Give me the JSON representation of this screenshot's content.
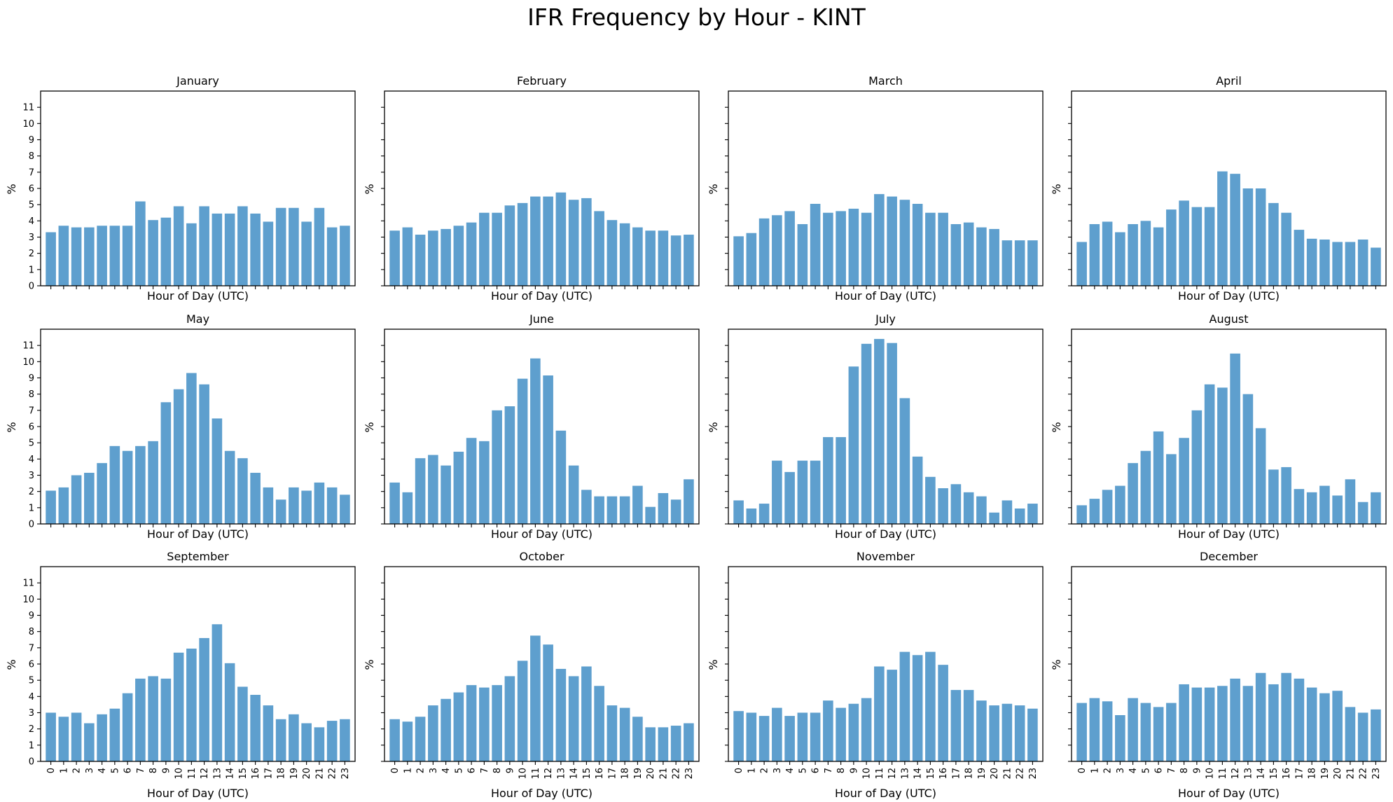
{
  "figure": {
    "title": "IFR Frequency by Hour - KINT"
  },
  "style": {
    "bar_color": "#5e9fce"
  },
  "chart_data": [
    {
      "type": "bar",
      "title": "January",
      "xlabel": "Hour of Day (UTC)",
      "ylabel": "%",
      "ylim": [
        0,
        12
      ],
      "categories": [
        "0",
        "1",
        "2",
        "3",
        "4",
        "5",
        "6",
        "7",
        "8",
        "9",
        "10",
        "11",
        "12",
        "13",
        "14",
        "15",
        "16",
        "17",
        "18",
        "19",
        "20",
        "21",
        "22",
        "23"
      ],
      "values": [
        3.3,
        3.7,
        3.6,
        3.6,
        3.7,
        3.7,
        3.7,
        5.2,
        4.05,
        4.2,
        4.9,
        3.85,
        4.9,
        4.45,
        4.45,
        4.9,
        4.45,
        3.95,
        4.8,
        4.8,
        3.95,
        4.8,
        3.6,
        3.7
      ]
    },
    {
      "type": "bar",
      "title": "February",
      "xlabel": "Hour of Day (UTC)",
      "ylabel": "%",
      "ylim": [
        0,
        12
      ],
      "categories": [
        "0",
        "1",
        "2",
        "3",
        "4",
        "5",
        "6",
        "7",
        "8",
        "9",
        "10",
        "11",
        "12",
        "13",
        "14",
        "15",
        "16",
        "17",
        "18",
        "19",
        "20",
        "21",
        "22",
        "23"
      ],
      "values": [
        3.4,
        3.6,
        3.15,
        3.4,
        3.5,
        3.7,
        3.9,
        4.5,
        4.5,
        4.95,
        5.1,
        5.5,
        5.5,
        5.75,
        5.3,
        5.4,
        4.6,
        4.05,
        3.85,
        3.6,
        3.4,
        3.4,
        3.1,
        3.15
      ]
    },
    {
      "type": "bar",
      "title": "March",
      "xlabel": "Hour of Day (UTC)",
      "ylabel": "%",
      "ylim": [
        0,
        12
      ],
      "categories": [
        "0",
        "1",
        "2",
        "3",
        "4",
        "5",
        "6",
        "7",
        "8",
        "9",
        "10",
        "11",
        "12",
        "13",
        "14",
        "15",
        "16",
        "17",
        "18",
        "19",
        "20",
        "21",
        "22",
        "23"
      ],
      "values": [
        3.05,
        3.25,
        4.15,
        4.35,
        4.6,
        3.8,
        5.05,
        4.5,
        4.6,
        4.75,
        4.5,
        5.65,
        5.5,
        5.3,
        5.05,
        4.5,
        4.5,
        3.8,
        3.9,
        3.6,
        3.5,
        2.8,
        2.8,
        2.8
      ]
    },
    {
      "type": "bar",
      "title": "April",
      "xlabel": "Hour of Day (UTC)",
      "ylabel": "%",
      "ylim": [
        0,
        12
      ],
      "categories": [
        "0",
        "1",
        "2",
        "3",
        "4",
        "5",
        "6",
        "7",
        "8",
        "9",
        "10",
        "11",
        "12",
        "13",
        "14",
        "15",
        "16",
        "17",
        "18",
        "19",
        "20",
        "21",
        "22",
        "23"
      ],
      "values": [
        2.7,
        3.8,
        3.95,
        3.3,
        3.8,
        4.0,
        3.6,
        4.7,
        5.25,
        4.85,
        4.85,
        7.05,
        6.9,
        6.0,
        6.0,
        5.1,
        4.5,
        3.45,
        2.9,
        2.85,
        2.7,
        2.7,
        2.85,
        2.35
      ]
    },
    {
      "type": "bar",
      "title": "May",
      "xlabel": "Hour of Day (UTC)",
      "ylabel": "%",
      "ylim": [
        0,
        12
      ],
      "categories": [
        "0",
        "1",
        "2",
        "3",
        "4",
        "5",
        "6",
        "7",
        "8",
        "9",
        "10",
        "11",
        "12",
        "13",
        "14",
        "15",
        "16",
        "17",
        "18",
        "19",
        "20",
        "21",
        "22",
        "23"
      ],
      "values": [
        2.05,
        2.25,
        3.0,
        3.15,
        3.75,
        4.8,
        4.5,
        4.8,
        5.1,
        7.5,
        8.3,
        9.3,
        8.6,
        6.5,
        4.5,
        4.05,
        3.15,
        2.25,
        1.5,
        2.25,
        2.05,
        2.55,
        2.25,
        1.8
      ]
    },
    {
      "type": "bar",
      "title": "June",
      "xlabel": "Hour of Day (UTC)",
      "ylabel": "%",
      "ylim": [
        0,
        12
      ],
      "categories": [
        "0",
        "1",
        "2",
        "3",
        "4",
        "5",
        "6",
        "7",
        "8",
        "9",
        "10",
        "11",
        "12",
        "13",
        "14",
        "15",
        "16",
        "17",
        "18",
        "19",
        "20",
        "21",
        "22",
        "23"
      ],
      "values": [
        2.55,
        1.95,
        4.05,
        4.25,
        3.6,
        4.45,
        5.3,
        5.1,
        7.0,
        7.25,
        8.95,
        10.2,
        9.15,
        5.75,
        3.6,
        2.1,
        1.7,
        1.7,
        1.7,
        2.35,
        1.05,
        1.9,
        1.5,
        2.75
      ]
    },
    {
      "type": "bar",
      "title": "July",
      "xlabel": "Hour of Day (UTC)",
      "ylabel": "%",
      "ylim": [
        0,
        12
      ],
      "categories": [
        "0",
        "1",
        "2",
        "3",
        "4",
        "5",
        "6",
        "7",
        "8",
        "9",
        "10",
        "11",
        "12",
        "13",
        "14",
        "15",
        "16",
        "17",
        "18",
        "19",
        "20",
        "21",
        "22",
        "23"
      ],
      "values": [
        1.45,
        0.95,
        1.25,
        3.9,
        3.2,
        3.9,
        3.9,
        5.35,
        5.35,
        9.7,
        11.1,
        11.4,
        11.15,
        7.75,
        4.15,
        2.9,
        2.2,
        2.45,
        1.95,
        1.7,
        0.7,
        1.45,
        0.95,
        1.25
      ]
    },
    {
      "type": "bar",
      "title": "August",
      "xlabel": "Hour of Day (UTC)",
      "ylabel": "%",
      "ylim": [
        0,
        12
      ],
      "categories": [
        "0",
        "1",
        "2",
        "3",
        "4",
        "5",
        "6",
        "7",
        "8",
        "9",
        "10",
        "11",
        "12",
        "13",
        "14",
        "15",
        "16",
        "17",
        "18",
        "19",
        "20",
        "21",
        "22",
        "23"
      ],
      "values": [
        1.15,
        1.55,
        2.1,
        2.35,
        3.75,
        4.5,
        5.7,
        4.3,
        5.3,
        7.0,
        8.6,
        8.4,
        10.5,
        8.0,
        5.9,
        3.35,
        3.5,
        2.15,
        1.95,
        2.35,
        1.75,
        2.75,
        1.35,
        1.95
      ]
    },
    {
      "type": "bar",
      "title": "September",
      "xlabel": "Hour of Day (UTC)",
      "ylabel": "%",
      "ylim": [
        0,
        12
      ],
      "categories": [
        "0",
        "1",
        "2",
        "3",
        "4",
        "5",
        "6",
        "7",
        "8",
        "9",
        "10",
        "11",
        "12",
        "13",
        "14",
        "15",
        "16",
        "17",
        "18",
        "19",
        "20",
        "21",
        "22",
        "23"
      ],
      "values": [
        3.0,
        2.75,
        3.0,
        2.35,
        2.9,
        3.25,
        4.2,
        5.1,
        5.25,
        5.1,
        6.7,
        6.95,
        7.6,
        8.45,
        6.05,
        4.6,
        4.1,
        3.45,
        2.6,
        2.9,
        2.35,
        2.1,
        2.5,
        2.6
      ]
    },
    {
      "type": "bar",
      "title": "October",
      "xlabel": "Hour of Day (UTC)",
      "ylabel": "%",
      "ylim": [
        0,
        12
      ],
      "categories": [
        "0",
        "1",
        "2",
        "3",
        "4",
        "5",
        "6",
        "7",
        "8",
        "9",
        "10",
        "11",
        "12",
        "13",
        "14",
        "15",
        "16",
        "17",
        "18",
        "19",
        "20",
        "21",
        "22",
        "23"
      ],
      "values": [
        2.6,
        2.45,
        2.75,
        3.45,
        3.85,
        4.25,
        4.7,
        4.55,
        4.7,
        5.25,
        6.2,
        7.75,
        7.2,
        5.7,
        5.25,
        5.85,
        4.65,
        3.45,
        3.3,
        2.75,
        2.1,
        2.1,
        2.2,
        2.35
      ]
    },
    {
      "type": "bar",
      "title": "November",
      "xlabel": "Hour of Day (UTC)",
      "ylabel": "%",
      "ylim": [
        0,
        12
      ],
      "categories": [
        "0",
        "1",
        "2",
        "3",
        "4",
        "5",
        "6",
        "7",
        "8",
        "9",
        "10",
        "11",
        "12",
        "13",
        "14",
        "15",
        "16",
        "17",
        "18",
        "19",
        "20",
        "21",
        "22",
        "23"
      ],
      "values": [
        3.1,
        3.0,
        2.8,
        3.3,
        2.8,
        3.0,
        3.0,
        3.75,
        3.3,
        3.55,
        3.9,
        5.85,
        5.65,
        6.75,
        6.55,
        6.75,
        5.95,
        4.4,
        4.4,
        3.75,
        3.45,
        3.55,
        3.45,
        3.25
      ]
    },
    {
      "type": "bar",
      "title": "December",
      "xlabel": "Hour of Day (UTC)",
      "ylabel": "%",
      "ylim": [
        0,
        12
      ],
      "categories": [
        "0",
        "1",
        "2",
        "3",
        "4",
        "5",
        "6",
        "7",
        "8",
        "9",
        "10",
        "11",
        "12",
        "13",
        "14",
        "15",
        "16",
        "17",
        "18",
        "19",
        "20",
        "21",
        "22",
        "23"
      ],
      "values": [
        3.6,
        3.9,
        3.7,
        2.85,
        3.9,
        3.6,
        3.35,
        3.6,
        4.75,
        4.55,
        4.55,
        4.65,
        5.1,
        4.65,
        5.45,
        4.75,
        5.45,
        5.1,
        4.55,
        4.2,
        4.35,
        3.35,
        3.0,
        3.2
      ]
    }
  ]
}
